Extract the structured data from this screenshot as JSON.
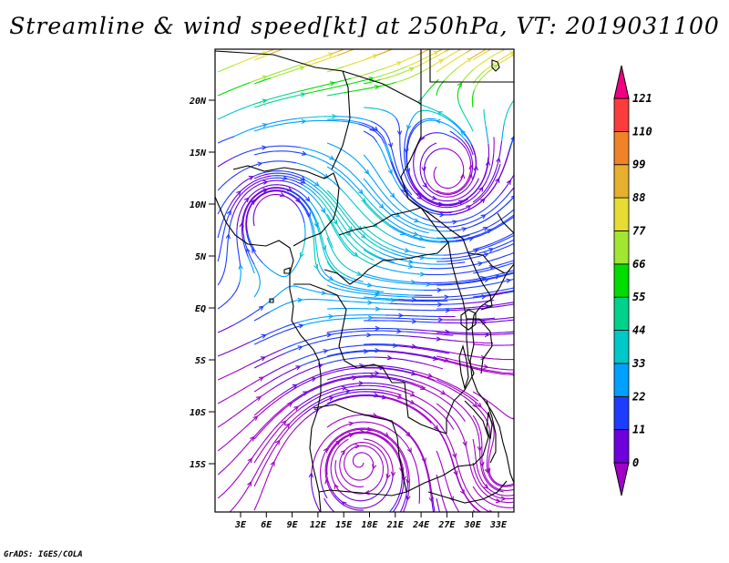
{
  "title": "Streamline & wind speed[kt] at 250hPa, VT: 2019031100",
  "credit": "GrADS: IGES/COLA",
  "map": {
    "lat_ticks": [
      "20N",
      "15N",
      "10N",
      "5N",
      "EQ",
      "5S",
      "10S",
      "15S"
    ],
    "lon_ticks": [
      "3E",
      "6E",
      "9E",
      "12E",
      "15E",
      "18E",
      "21E",
      "24E",
      "27E",
      "30E",
      "33E"
    ]
  },
  "colorbar": {
    "levels": [
      "0",
      "11",
      "22",
      "33",
      "44",
      "55",
      "66",
      "77",
      "88",
      "99",
      "110",
      "121"
    ],
    "colors": [
      "#a000c8",
      "#6e00dc",
      "#1e3cff",
      "#00a0ff",
      "#00c8c8",
      "#00d28c",
      "#00dc00",
      "#a0e632",
      "#e6dc32",
      "#e6af2d",
      "#f08228",
      "#fa3c3c",
      "#f00082"
    ]
  }
}
